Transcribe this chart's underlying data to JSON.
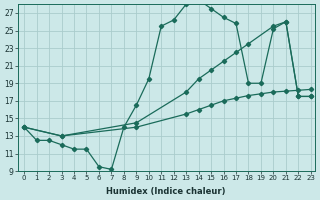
{
  "xlabel": "Humidex (Indice chaleur)",
  "bg_color": "#cce8e8",
  "line_color": "#1a6b5a",
  "grid_color": "#aacccc",
  "xlim": [
    -0.5,
    23.3
  ],
  "ylim": [
    9,
    28
  ],
  "yticks": [
    9,
    11,
    13,
    15,
    17,
    19,
    21,
    23,
    25,
    27
  ],
  "xticks": [
    0,
    1,
    2,
    3,
    4,
    5,
    6,
    7,
    8,
    9,
    10,
    11,
    12,
    13,
    14,
    15,
    16,
    17,
    18,
    19,
    20,
    21,
    22,
    23
  ],
  "series1_x": [
    0,
    1,
    2,
    3,
    4,
    5,
    6,
    7,
    8,
    9,
    10,
    11,
    12,
    13,
    14,
    15,
    16,
    17,
    18,
    19,
    20,
    21,
    22,
    23
  ],
  "series1_y": [
    14.0,
    12.5,
    12.5,
    12.0,
    11.5,
    11.5,
    9.5,
    9.2,
    14.0,
    16.5,
    19.5,
    25.5,
    26.2,
    28.0,
    28.5,
    27.5,
    26.5,
    25.8,
    19.0,
    19.0,
    25.2,
    26.0,
    17.5,
    17.5
  ],
  "trend_upper_x": [
    0,
    3,
    9,
    13,
    14,
    15,
    16,
    17,
    18,
    20,
    21,
    22,
    23
  ],
  "trend_upper_y": [
    14.0,
    13.0,
    14.5,
    18.0,
    19.5,
    20.5,
    21.5,
    22.5,
    23.5,
    25.5,
    26.0,
    17.5,
    17.5
  ],
  "trend_lower_x": [
    0,
    3,
    9,
    13,
    14,
    15,
    16,
    17,
    18,
    19,
    20,
    21,
    22,
    23
  ],
  "trend_lower_y": [
    14.0,
    13.0,
    14.0,
    15.5,
    16.0,
    16.5,
    17.0,
    17.3,
    17.6,
    17.8,
    18.0,
    18.1,
    18.2,
    18.3
  ]
}
